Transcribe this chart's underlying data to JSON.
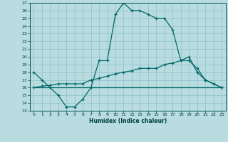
{
  "xlabel": "Humidex (Indice chaleur)",
  "bg_color": "#b8dce0",
  "grid_color": "#90c0c8",
  "line_color": "#006868",
  "xlim": [
    -0.5,
    23.5
  ],
  "ylim": [
    13,
    27
  ],
  "xticks": [
    0,
    1,
    2,
    3,
    4,
    5,
    6,
    7,
    8,
    9,
    10,
    11,
    12,
    13,
    14,
    15,
    16,
    17,
    18,
    19,
    20,
    21,
    22,
    23
  ],
  "yticks": [
    13,
    14,
    15,
    16,
    17,
    18,
    19,
    20,
    21,
    22,
    23,
    24,
    25,
    26,
    27
  ],
  "line1_x": [
    0,
    1,
    2,
    3,
    4,
    5,
    6,
    7,
    8,
    9,
    10,
    11,
    12,
    13,
    14,
    15,
    16,
    17,
    18,
    19,
    20,
    21,
    22,
    23
  ],
  "line1_y": [
    18.0,
    17.0,
    16.0,
    15.0,
    13.5,
    13.5,
    14.5,
    16.0,
    19.5,
    19.5,
    25.5,
    27.0,
    26.0,
    26.0,
    25.5,
    25.0,
    25.0,
    23.5,
    19.5,
    20.0,
    18.0,
    17.0,
    16.5,
    16.0
  ],
  "line2_x": [
    0,
    1,
    2,
    3,
    4,
    5,
    6,
    7,
    8,
    9,
    10,
    11,
    12,
    13,
    14,
    15,
    16,
    17,
    18,
    19,
    20,
    21,
    22,
    23
  ],
  "line2_y": [
    16.0,
    16.2,
    16.3,
    16.5,
    16.5,
    16.5,
    16.5,
    17.0,
    17.2,
    17.5,
    17.8,
    18.0,
    18.2,
    18.5,
    18.5,
    18.5,
    19.0,
    19.2,
    19.5,
    19.5,
    18.5,
    17.0,
    16.5,
    16.0
  ],
  "line3_x": [
    0,
    1,
    2,
    3,
    4,
    5,
    6,
    7,
    8,
    9,
    10,
    11,
    12,
    13,
    14,
    15,
    16,
    17,
    18,
    19,
    20,
    21,
    22,
    23
  ],
  "line3_y": [
    16.0,
    16.0,
    16.0,
    16.0,
    16.0,
    16.0,
    16.0,
    16.0,
    16.0,
    16.0,
    16.0,
    16.0,
    16.0,
    16.0,
    16.0,
    16.0,
    16.0,
    16.0,
    16.0,
    16.0,
    16.0,
    16.0,
    16.0,
    16.0
  ]
}
